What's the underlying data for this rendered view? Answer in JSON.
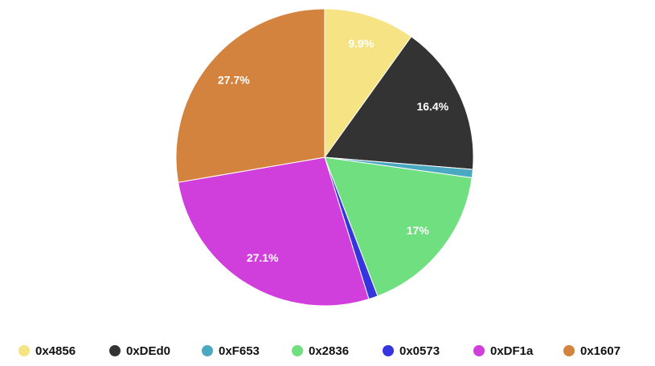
{
  "chart_data": {
    "type": "pie",
    "categories": [
      "0x4856",
      "0xDEd0",
      "0xF653",
      "0x2836",
      "0x0573",
      "0xDF1a",
      "0x1607"
    ],
    "values": [
      9.9,
      16.4,
      0.9,
      17,
      1.0,
      27.1,
      27.7
    ],
    "value_labels": [
      "9.9%",
      "16.4%",
      null,
      "17%",
      null,
      "27.1%",
      "27.7%"
    ],
    "colors": [
      "#f5e384",
      "#333333",
      "#4aa8c0",
      "#6fdf80",
      "#3535dd",
      "#d03fdc",
      "#d4833e"
    ],
    "legend": "bottom"
  }
}
